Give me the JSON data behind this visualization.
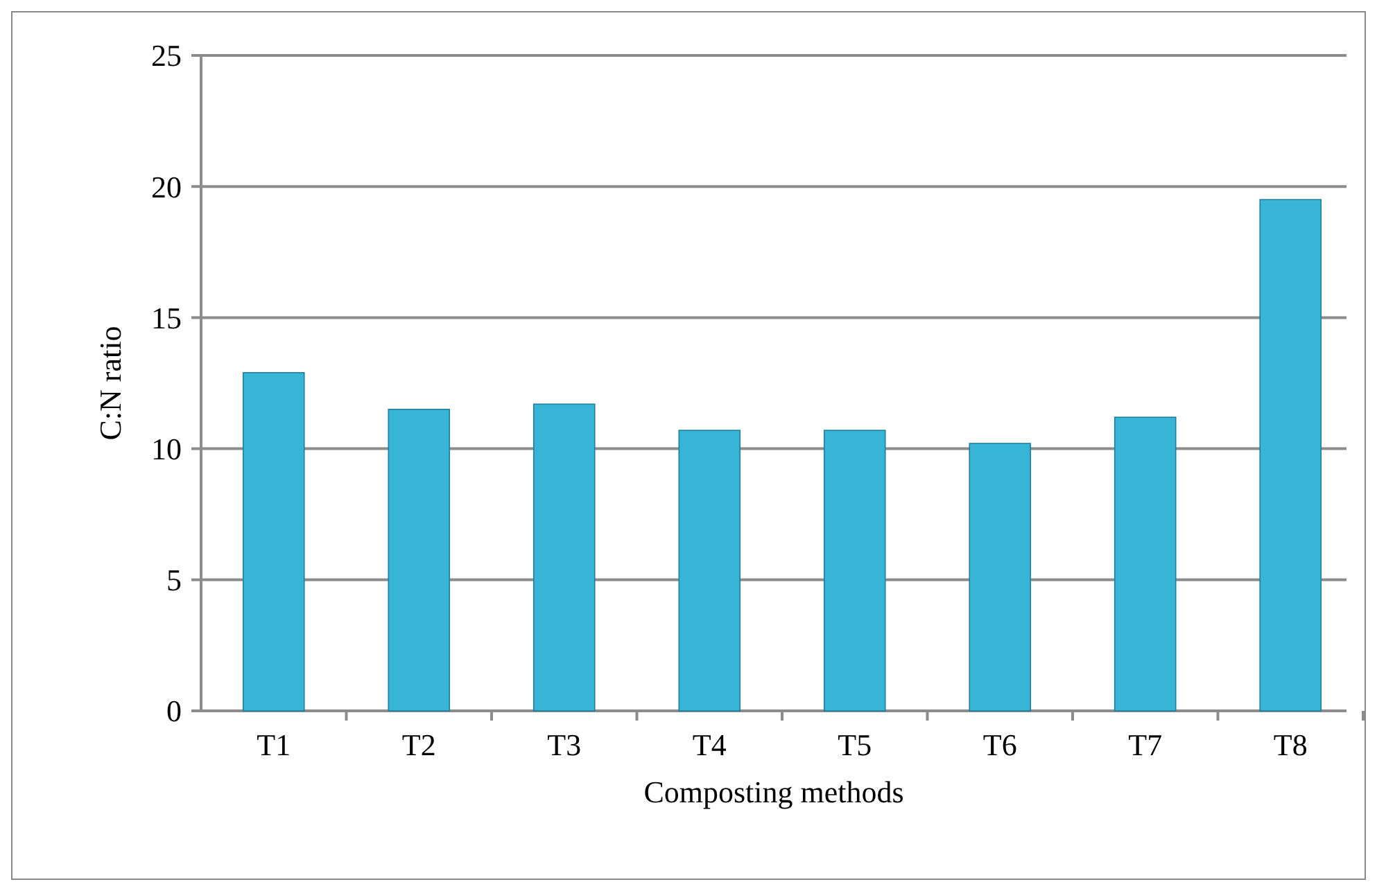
{
  "chart_data": {
    "type": "bar",
    "xlabel": "Composting methods",
    "ylabel": "C:N ratio",
    "categories": [
      "T1",
      "T2",
      "T3",
      "T4",
      "T5",
      "T6",
      "T7",
      "T8"
    ],
    "values": [
      12.9,
      11.5,
      11.7,
      10.7,
      10.7,
      10.2,
      11.2,
      19.5
    ],
    "color": "#38b4d6",
    "ylim": [
      0,
      25
    ],
    "yticks": [
      0,
      5,
      10,
      15,
      20,
      25
    ],
    "grid": "y"
  }
}
